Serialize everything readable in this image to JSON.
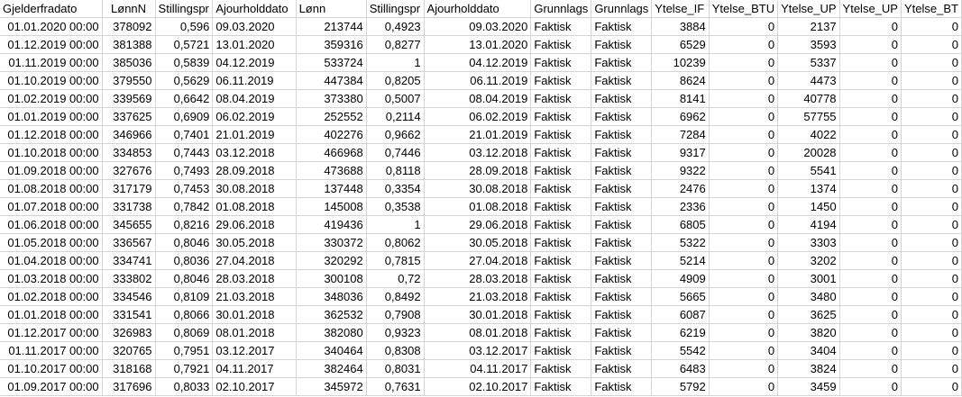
{
  "sheet": {
    "headers": [
      "Gjelderfradato",
      "LønnN",
      "Stillingspr",
      "Ajourholddato",
      "Lønn",
      "Stillingspr",
      "Ajourholddato",
      "Grunnlags",
      "Grunnlags",
      "Ytelse_IF",
      "Ytelse_BTU",
      "Ytelse_UP",
      "Ytelse_UP",
      "Ytelse_BT"
    ],
    "rows": [
      [
        "01.01.2020 00:00",
        "378092",
        "0,596",
        "09.03.2020",
        "213744",
        "0,4923",
        "09.03.2020",
        "Faktisk",
        "Faktisk",
        "3884",
        "0",
        "2137",
        "0",
        "0"
      ],
      [
        "01.12.2019 00:00",
        "381388",
        "0,5721",
        "13.01.2020",
        "359316",
        "0,8277",
        "13.01.2020",
        "Faktisk",
        "Faktisk",
        "6529",
        "0",
        "3593",
        "0",
        "0"
      ],
      [
        "01.11.2019 00:00",
        "385036",
        "0,5839",
        "04.12.2019",
        "533724",
        "1",
        "04.12.2019",
        "Faktisk",
        "Faktisk",
        "10239",
        "0",
        "5337",
        "0",
        "0"
      ],
      [
        "01.10.2019 00:00",
        "379550",
        "0,5629",
        "06.11.2019",
        "447384",
        "0,8205",
        "06.11.2019",
        "Faktisk",
        "Faktisk",
        "8624",
        "0",
        "4473",
        "0",
        "0"
      ],
      [
        "01.02.2019 00:00",
        "339569",
        "0,6642",
        "08.04.2019",
        "373380",
        "0,5007",
        "08.04.2019",
        "Faktisk",
        "Faktisk",
        "8141",
        "0",
        "40778",
        "0",
        "0"
      ],
      [
        "01.01.2019 00:00",
        "337625",
        "0,6909",
        "06.02.2019",
        "252552",
        "0,2114",
        "06.02.2019",
        "Faktisk",
        "Faktisk",
        "6962",
        "0",
        "57755",
        "0",
        "0"
      ],
      [
        "01.12.2018 00:00",
        "346966",
        "0,7401",
        "21.01.2019",
        "402276",
        "0,9662",
        "21.01.2019",
        "Faktisk",
        "Faktisk",
        "7284",
        "0",
        "4022",
        "0",
        "0"
      ],
      [
        "01.10.2018 00:00",
        "334853",
        "0,7443",
        "03.12.2018",
        "466968",
        "0,7446",
        "03.12.2018",
        "Faktisk",
        "Faktisk",
        "9317",
        "0",
        "20028",
        "0",
        "0"
      ],
      [
        "01.09.2018 00:00",
        "327676",
        "0,7493",
        "28.09.2018",
        "473688",
        "0,8118",
        "28.09.2018",
        "Faktisk",
        "Faktisk",
        "9322",
        "0",
        "5541",
        "0",
        "0"
      ],
      [
        "01.08.2018 00:00",
        "317179",
        "0,7453",
        "30.08.2018",
        "137448",
        "0,3354",
        "30.08.2018",
        "Faktisk",
        "Faktisk",
        "2476",
        "0",
        "1374",
        "0",
        "0"
      ],
      [
        "01.07.2018 00:00",
        "331738",
        "0,7842",
        "01.08.2018",
        "145008",
        "0,3538",
        "01.08.2018",
        "Faktisk",
        "Faktisk",
        "2336",
        "0",
        "1450",
        "0",
        "0"
      ],
      [
        "01.06.2018 00:00",
        "345655",
        "0,8216",
        "29.06.2018",
        "419436",
        "1",
        "29.06.2018",
        "Faktisk",
        "Faktisk",
        "6805",
        "0",
        "4194",
        "0",
        "0"
      ],
      [
        "01.05.2018 00:00",
        "336567",
        "0,8046",
        "30.05.2018",
        "330372",
        "0,8062",
        "30.05.2018",
        "Faktisk",
        "Faktisk",
        "5322",
        "0",
        "3303",
        "0",
        "0"
      ],
      [
        "01.04.2018 00:00",
        "334741",
        "0,8036",
        "27.04.2018",
        "320292",
        "0,7815",
        "27.04.2018",
        "Faktisk",
        "Faktisk",
        "5214",
        "0",
        "3202",
        "0",
        "0"
      ],
      [
        "01.03.2018 00:00",
        "333802",
        "0,8046",
        "28.03.2018",
        "300108",
        "0,72",
        "28.03.2018",
        "Faktisk",
        "Faktisk",
        "4909",
        "0",
        "3001",
        "0",
        "0"
      ],
      [
        "01.02.2018 00:00",
        "334546",
        "0,8109",
        "21.03.2018",
        "348036",
        "0,8492",
        "21.03.2018",
        "Faktisk",
        "Faktisk",
        "5665",
        "0",
        "3480",
        "0",
        "0"
      ],
      [
        "01.01.2018 00:00",
        "331541",
        "0,8066",
        "30.01.2018",
        "362532",
        "0,7908",
        "30.01.2018",
        "Faktisk",
        "Faktisk",
        "6087",
        "0",
        "3625",
        "0",
        "0"
      ],
      [
        "01.12.2017 00:00",
        "326983",
        "0,8069",
        "08.01.2018",
        "382080",
        "0,9323",
        "08.01.2018",
        "Faktisk",
        "Faktisk",
        "6219",
        "0",
        "3820",
        "0",
        "0"
      ],
      [
        "01.11.2017 00:00",
        "320765",
        "0,7951",
        "03.12.2017",
        "340464",
        "0,8308",
        "03.12.2017",
        "Faktisk",
        "Faktisk",
        "5542",
        "0",
        "3404",
        "0",
        "0"
      ],
      [
        "01.10.2017 00:00",
        "318168",
        "0,7921",
        "04.11.2017",
        "382464",
        "0,8031",
        "04.11.2017",
        "Faktisk",
        "Faktisk",
        "6483",
        "0",
        "3824",
        "0",
        "0"
      ],
      [
        "01.09.2017 00:00",
        "317696",
        "0,8033",
        "02.10.2017",
        "345972",
        "0,7631",
        "02.10.2017",
        "Faktisk",
        "Faktisk",
        "5792",
        "0",
        "3459",
        "0",
        "0"
      ]
    ]
  }
}
